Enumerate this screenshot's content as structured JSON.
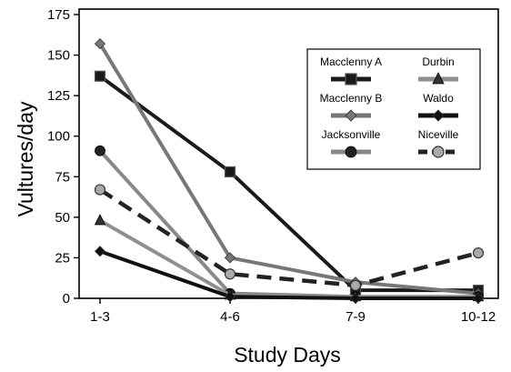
{
  "chart_data": {
    "type": "line",
    "title": "",
    "xlabel": "Study Days",
    "ylabel": "Vultures/day",
    "categories": [
      "1-3",
      "4-6",
      "7-9",
      "10-12"
    ],
    "ylim": [
      0,
      175
    ],
    "yticks": [
      0,
      25,
      50,
      75,
      100,
      125,
      150,
      175
    ],
    "grid": false,
    "legend": "top-right inside plot",
    "series": [
      {
        "name": "Macclenny A",
        "values": [
          137,
          78,
          5,
          5
        ],
        "color": "#1a1a1a",
        "dash": "none",
        "marker": "square-cross"
      },
      {
        "name": "Macclenny B",
        "values": [
          157,
          25,
          10,
          3
        ],
        "color": "#777777",
        "dash": "none",
        "marker": "diamond"
      },
      {
        "name": "Jacksonville",
        "values": [
          91,
          3,
          1,
          1
        ],
        "color": "#888888",
        "dash": "none",
        "marker": "circle"
      },
      {
        "name": "Durbin",
        "values": [
          48,
          2,
          1,
          1
        ],
        "color": "#8f8f8f",
        "dash": "none",
        "marker": "triangle"
      },
      {
        "name": "Waldo",
        "values": [
          29,
          1,
          0,
          0
        ],
        "color": "#111111",
        "dash": "none",
        "marker": "diamond"
      },
      {
        "name": "Niceville",
        "values": [
          67,
          15,
          8,
          28
        ],
        "color": "#222222",
        "dash": "dashed",
        "marker": "circle-hatched"
      }
    ],
    "legend_order": [
      "Macclenny A",
      "Durbin",
      "Macclenny B",
      "Waldo",
      "Jacksonville",
      "Niceville"
    ]
  }
}
